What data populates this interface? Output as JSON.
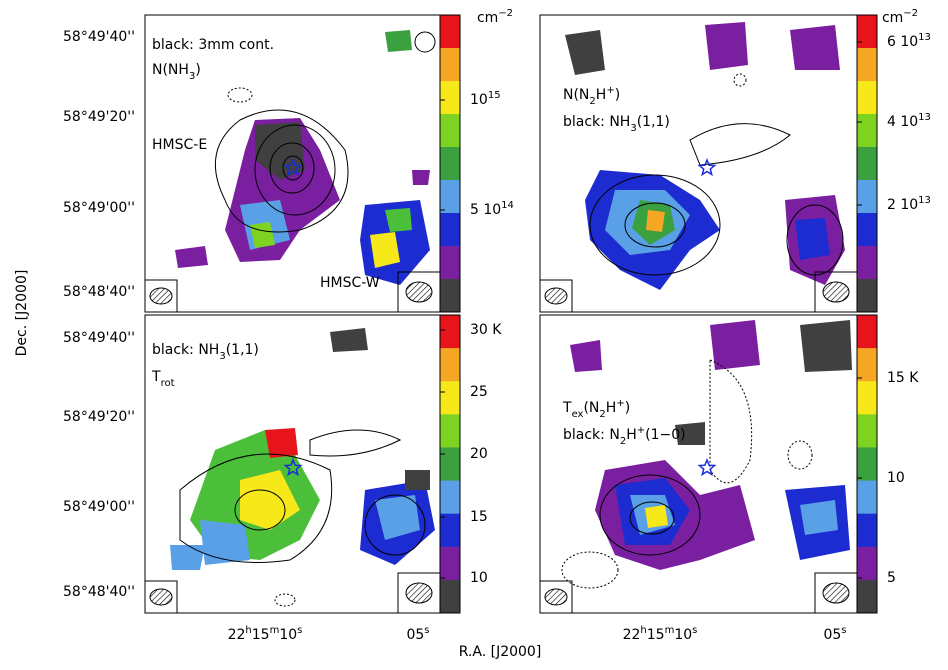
{
  "figure": {
    "y_label": "Dec. [J2000]",
    "x_label": "R.A. [J2000]",
    "dec_ticks": [
      "58°49'40''",
      "58°49'20''",
      "58°49'00''",
      "58°48'40''"
    ],
    "ra_ticks": [
      [
        "22",
        "h",
        "15",
        "m",
        "10",
        "s"
      ],
      [
        "05",
        "s"
      ]
    ],
    "panels": [
      {
        "labels": [
          [
            "black: 3mm cont."
          ],
          [
            "N(NH",
            "3",
            ")"
          ]
        ],
        "sources": [
          "HMSC-E",
          "HMSC-W"
        ],
        "unit": [
          "cm",
          "−2"
        ],
        "colorbar_ticks": [
          [
            "10",
            "15"
          ],
          [
            "5 10",
            "14"
          ]
        ]
      },
      {
        "labels": [
          [
            "N(N",
            "2",
            "H",
            "+",
            ")"
          ],
          [
            "black: NH",
            "3",
            "(1,1)"
          ]
        ],
        "unit": [
          "cm",
          "−2"
        ],
        "colorbar_ticks": [
          [
            "6 10",
            "13"
          ],
          [
            "4 10",
            "13"
          ],
          [
            "2 10",
            "13"
          ]
        ]
      },
      {
        "labels": [
          [
            "black: NH",
            "3",
            "(1,1)"
          ],
          [
            "T",
            "rot"
          ]
        ],
        "colorbar_ticks": [
          [
            "30 K"
          ],
          [
            "25"
          ],
          [
            "20"
          ],
          [
            "15"
          ],
          [
            "10"
          ]
        ]
      },
      {
        "labels": [
          [
            "T",
            "ex",
            "(N",
            "2",
            "H",
            "+",
            ")"
          ],
          [
            "black: N",
            "2",
            "H",
            "+",
            "(1−0)"
          ]
        ],
        "colorbar_ticks": [
          [
            "15 K"
          ],
          [
            "10"
          ],
          [
            "5"
          ]
        ]
      }
    ]
  }
}
